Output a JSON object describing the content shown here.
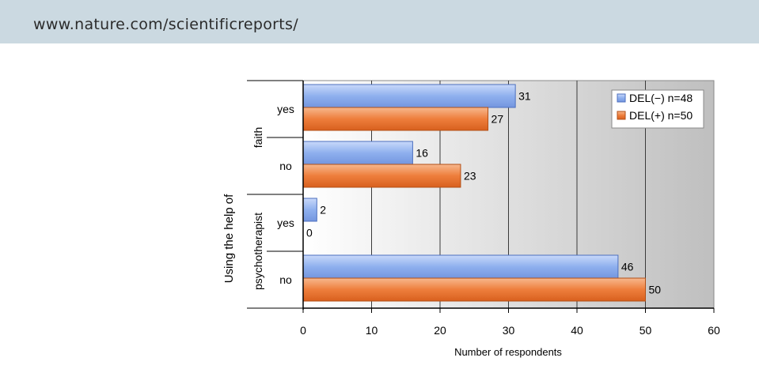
{
  "header": {
    "url": "www.nature.com/scientificreports/"
  },
  "chart_data": {
    "type": "bar",
    "orientation": "horizontal",
    "xlabel": "Number of respondents",
    "ylabel": "Using the help of",
    "xlim": [
      0,
      60
    ],
    "xticks": [
      0,
      10,
      20,
      30,
      40,
      50,
      60
    ],
    "grid": true,
    "legend_position": "top-right",
    "groups": [
      {
        "label": "faith",
        "categories": [
          "yes",
          "no"
        ]
      },
      {
        "label": "psychotherapist",
        "categories": [
          "yes",
          "no"
        ]
      }
    ],
    "categories": [
      "faith / yes",
      "faith / no",
      "psychotherapist / yes",
      "psychotherapist / no"
    ],
    "category_labels": [
      "yes",
      "no",
      "yes",
      "no"
    ],
    "series": [
      {
        "name": "DEL(−) n=48",
        "values": [
          31,
          16,
          2,
          46
        ],
        "color": "#8fb0ee"
      },
      {
        "name": "DEL(+) n=50",
        "values": [
          27,
          23,
          0,
          50
        ],
        "color": "#ee7e3c"
      }
    ]
  }
}
